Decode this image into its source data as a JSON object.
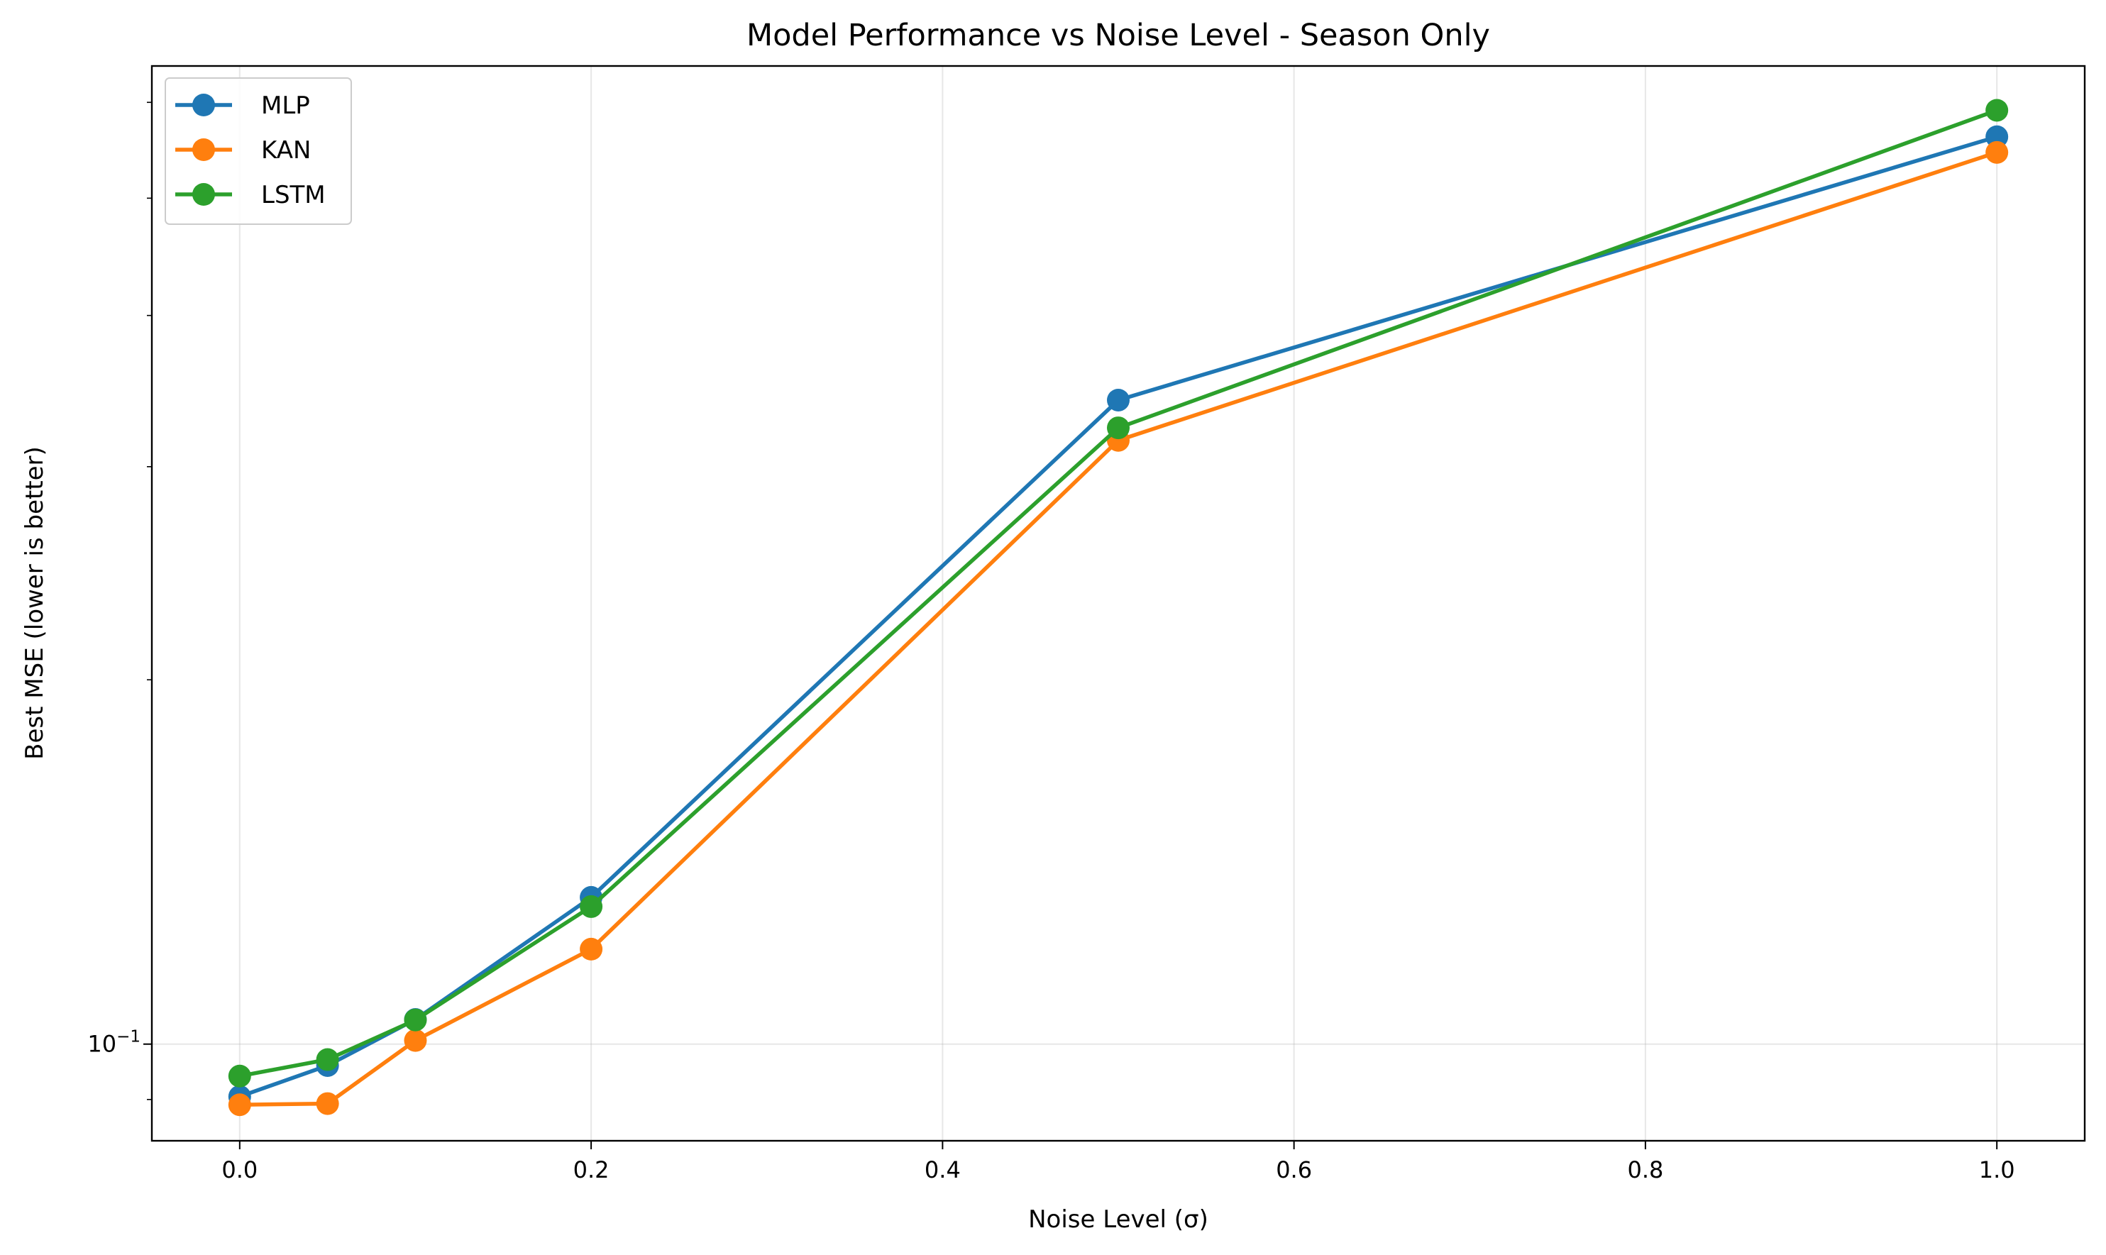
{
  "chart_data": {
    "type": "line",
    "title": "Model Performance vs Noise Level - Season Only",
    "xlabel": "Noise Level (σ)",
    "ylabel": "Best MSE (lower is better)",
    "x": [
      0.0,
      0.05,
      0.1,
      0.2,
      0.5,
      1.0
    ],
    "xlim": [
      -0.05,
      1.05
    ],
    "ylim": [
      0.0832,
      0.643
    ],
    "yscale": "log",
    "grid": true,
    "legend_position": "top-left",
    "xticks": [
      0.0,
      0.2,
      0.4,
      0.6,
      0.8,
      1.0
    ],
    "xtick_labels": [
      "0.0",
      "0.2",
      "0.4",
      "0.6",
      "0.8",
      "1.0"
    ],
    "yticks": [
      0.1
    ],
    "ytick_labels": [
      {
        "base": "10",
        "exp": "−1"
      }
    ],
    "series": [
      {
        "name": "MLP",
        "color": "#1f77b4",
        "values": [
          0.0905,
          0.096,
          0.1048,
          0.1322,
          0.3405,
          0.562
        ]
      },
      {
        "name": "KAN",
        "color": "#ff7f0e",
        "values": [
          0.0891,
          0.0893,
          0.1007,
          0.1198,
          0.3154,
          0.5455
        ]
      },
      {
        "name": "LSTM",
        "color": "#2ca02c",
        "values": [
          0.0941,
          0.0971,
          0.1047,
          0.1299,
          0.323,
          0.591
        ]
      }
    ]
  }
}
